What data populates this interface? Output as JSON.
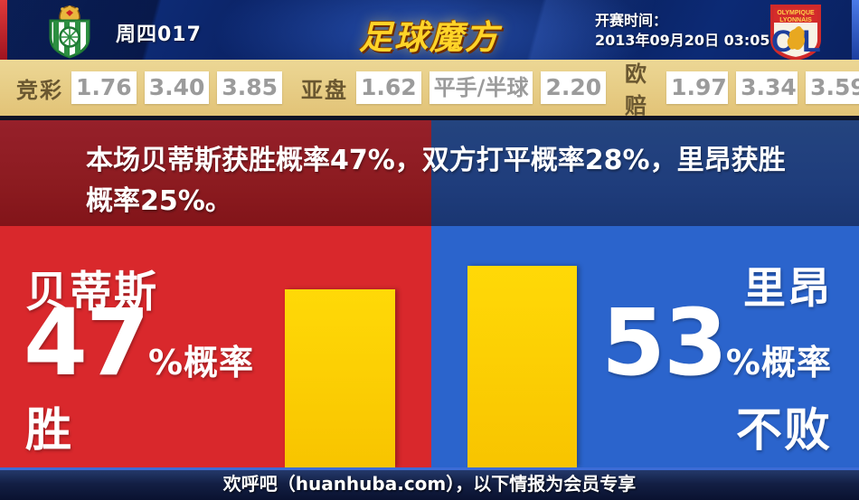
{
  "header": {
    "match_label": "周四017",
    "logo_text": "足球魔方",
    "kickoff_label": "开赛时间：",
    "kickoff_datetime": "2013年09月20日 03:05",
    "ol_word1": "OLYMPIQUE",
    "ol_word2": "LYONNAIS",
    "ol_letter_o": "O",
    "ol_letter_l": "L"
  },
  "odds": {
    "groups": [
      {
        "label": "竞彩",
        "values": [
          "1.76",
          "3.40",
          "3.85"
        ]
      },
      {
        "label": "亚盘",
        "values": [
          "1.62",
          "平手/半球",
          "2.20"
        ]
      },
      {
        "label": "欧赔",
        "values": [
          "1.97",
          "3.34",
          "3.59"
        ]
      }
    ]
  },
  "banner": {
    "text": "本场贝蒂斯获胜概率47%，双方打平概率28%，里昂获胜概率25%。"
  },
  "panels": {
    "left": {
      "team": "贝蒂斯",
      "value": "47",
      "suffix": "%概率",
      "outcome": "胜"
    },
    "right": {
      "team": "里昂",
      "value": "53",
      "suffix": "%概率",
      "outcome": "不败"
    }
  },
  "footer": {
    "text": "欢呼吧（huanhuba.com），以下情报为会员专享"
  },
  "chart_data": {
    "type": "bar",
    "categories": [
      "贝蒂斯 胜",
      "里昂 不败"
    ],
    "values": [
      47,
      53
    ],
    "unit": "%",
    "bar_color": "#fccb05",
    "title": "",
    "xlabel": "",
    "ylabel": "概率 (%)",
    "ylim": [
      0,
      63.5
    ],
    "annotations": {
      "home_win": 47,
      "draw": 28,
      "away_win": 25
    }
  },
  "colors": {
    "home_accent": "#d9282c",
    "away_accent": "#2b64cc",
    "bar_gold": "#fccb05",
    "odds_bg": "#e2c377",
    "header_navy": "#0b2468"
  }
}
